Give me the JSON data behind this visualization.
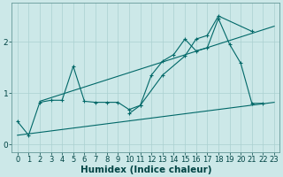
{
  "bg_color": "#cce8e8",
  "grid_color": "#aad0d0",
  "line_color": "#006868",
  "xlabel": "Humidex (Indice chaleur)",
  "xlabel_fontsize": 7.5,
  "tick_fontsize": 6,
  "yticks": [
    0,
    1,
    2
  ],
  "xlim": [
    -0.5,
    23.5
  ],
  "ylim": [
    -0.15,
    2.75
  ],
  "x_values": [
    0,
    1,
    2,
    3,
    4,
    5,
    6,
    7,
    8,
    9,
    10,
    11,
    12,
    13,
    14,
    15,
    16,
    17,
    18,
    19,
    20,
    21,
    22,
    23
  ],
  "series1": [
    0.45,
    0.18,
    0.82,
    0.86,
    0.86,
    1.52,
    0.84,
    0.82,
    0.82,
    0.82,
    0.68,
    0.76,
    1.35,
    1.62,
    1.75,
    2.05,
    1.82,
    1.88,
    2.45,
    1.95,
    1.58,
    0.8,
    0.8,
    null
  ],
  "series2_x": [
    10,
    11,
    13,
    15,
    16,
    17,
    18,
    21
  ],
  "series2_y": [
    0.6,
    0.76,
    1.35,
    1.72,
    2.05,
    2.12,
    2.5,
    2.2
  ],
  "line1_x": [
    0,
    23
  ],
  "line1_y": [
    0.18,
    0.82
  ],
  "line2_x": [
    2,
    23
  ],
  "line2_y": [
    0.84,
    2.3
  ],
  "xtick_labels": [
    "0",
    "1",
    "2",
    "3",
    "4",
    "5",
    "6",
    "7",
    "8",
    "9",
    "10",
    "11",
    "12",
    "13",
    "14",
    "15",
    "16",
    "17",
    "18",
    "19",
    "20",
    "21",
    "22",
    "23"
  ]
}
